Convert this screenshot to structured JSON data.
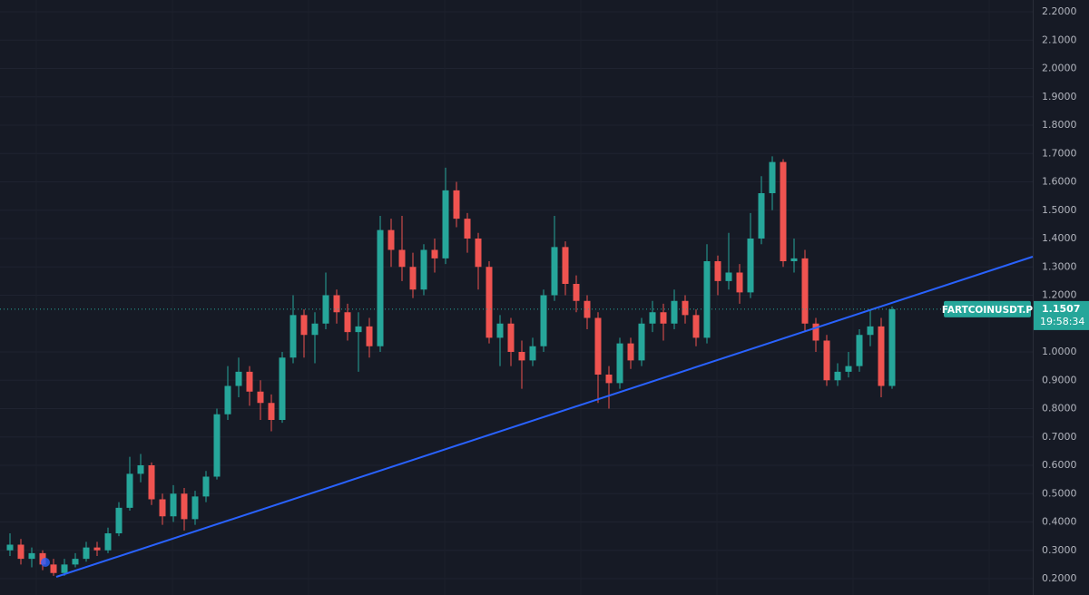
{
  "chart_data": {
    "type": "candlestick",
    "symbol": "FARTCOINUSDT.P",
    "last_price_label": "1.1507",
    "countdown": "19:58:34",
    "up_color": "#26a69a",
    "down_color": "#ef5350",
    "ylim": [
      0.1424,
      2.2416
    ],
    "yticks": [
      {
        "value": 0.2,
        "label": "0.2000"
      },
      {
        "value": 0.3,
        "label": "0.3000"
      },
      {
        "value": 0.4,
        "label": "0.4000"
      },
      {
        "value": 0.5,
        "label": "0.5000"
      },
      {
        "value": 0.6,
        "label": "0.6000"
      },
      {
        "value": 0.7,
        "label": "0.7000"
      },
      {
        "value": 0.8,
        "label": "0.8000"
      },
      {
        "value": 0.9,
        "label": "0.9000"
      },
      {
        "value": 1.0,
        "label": "1.0000"
      },
      {
        "value": 1.2,
        "label": "1.2000"
      },
      {
        "value": 1.3,
        "label": "1.3000"
      },
      {
        "value": 1.4,
        "label": "1.4000"
      },
      {
        "value": 1.5,
        "label": "1.5000"
      },
      {
        "value": 1.6,
        "label": "1.6000"
      },
      {
        "value": 1.7,
        "label": "1.7000"
      },
      {
        "value": 1.8,
        "label": "1.8000"
      },
      {
        "value": 1.9,
        "label": "1.9000"
      },
      {
        "value": 2.0,
        "label": "2.0000"
      },
      {
        "value": 2.1,
        "label": "2.1000"
      },
      {
        "value": 2.2,
        "label": "2.2000"
      }
    ],
    "grid": true,
    "open": [
      0.3,
      0.32,
      0.27,
      0.29,
      0.25,
      0.22,
      0.25,
      0.27,
      0.31,
      0.3,
      0.36,
      0.45,
      0.57,
      0.6,
      0.48,
      0.42,
      0.5,
      0.41,
      0.49,
      0.56,
      0.78,
      0.88,
      0.93,
      0.86,
      0.82,
      0.76,
      0.98,
      1.13,
      1.06,
      1.1,
      1.2,
      1.14,
      1.07,
      1.09,
      1.02,
      1.43,
      1.36,
      1.3,
      1.22,
      1.36,
      1.33,
      1.57,
      1.47,
      1.4,
      1.3,
      1.05,
      1.1,
      1.0,
      0.97,
      1.02,
      1.2,
      1.37,
      1.24,
      1.18,
      1.12,
      0.92,
      0.89,
      1.03,
      0.97,
      1.1,
      1.14,
      1.1,
      1.18,
      1.13,
      1.05,
      1.32,
      1.25,
      1.28,
      1.21,
      1.4,
      1.56,
      1.67,
      1.32,
      1.33,
      1.1,
      1.04,
      0.9,
      0.93,
      0.95,
      1.06,
      1.09,
      0.88
    ],
    "high": [
      0.36,
      0.34,
      0.31,
      0.3,
      0.27,
      0.27,
      0.29,
      0.33,
      0.33,
      0.38,
      0.47,
      0.63,
      0.64,
      0.61,
      0.5,
      0.53,
      0.52,
      0.51,
      0.58,
      0.8,
      0.95,
      0.98,
      0.95,
      0.9,
      0.85,
      1.0,
      1.2,
      1.15,
      1.14,
      1.28,
      1.22,
      1.17,
      1.14,
      1.12,
      1.48,
      1.47,
      1.48,
      1.35,
      1.38,
      1.4,
      1.65,
      1.6,
      1.49,
      1.42,
      1.32,
      1.13,
      1.12,
      1.04,
      1.05,
      1.22,
      1.48,
      1.39,
      1.27,
      1.2,
      1.14,
      0.95,
      1.05,
      1.05,
      1.12,
      1.18,
      1.17,
      1.22,
      1.2,
      1.15,
      1.38,
      1.34,
      1.42,
      1.31,
      1.49,
      1.62,
      1.69,
      1.68,
      1.4,
      1.36,
      1.12,
      1.06,
      0.96,
      1.0,
      1.08,
      1.15,
      1.12,
      1.16
    ],
    "low": [
      0.28,
      0.25,
      0.24,
      0.23,
      0.21,
      0.21,
      0.24,
      0.26,
      0.28,
      0.29,
      0.35,
      0.44,
      0.54,
      0.46,
      0.39,
      0.4,
      0.37,
      0.39,
      0.47,
      0.55,
      0.76,
      0.84,
      0.81,
      0.76,
      0.72,
      0.75,
      0.96,
      0.98,
      0.96,
      1.08,
      1.1,
      1.04,
      0.93,
      0.98,
      1.0,
      1.3,
      1.25,
      1.19,
      1.2,
      1.28,
      1.31,
      1.44,
      1.35,
      1.22,
      1.03,
      0.95,
      0.95,
      0.87,
      0.95,
      1.0,
      1.18,
      1.2,
      1.14,
      1.08,
      0.82,
      0.8,
      0.87,
      0.94,
      0.95,
      1.07,
      1.04,
      1.08,
      1.1,
      1.02,
      1.03,
      1.2,
      1.22,
      1.17,
      1.19,
      1.38,
      1.5,
      1.3,
      1.28,
      1.07,
      1.0,
      0.88,
      0.88,
      0.91,
      0.93,
      1.02,
      0.84,
      0.87
    ],
    "close": [
      0.32,
      0.27,
      0.29,
      0.25,
      0.22,
      0.25,
      0.27,
      0.31,
      0.3,
      0.36,
      0.45,
      0.57,
      0.6,
      0.48,
      0.42,
      0.5,
      0.41,
      0.49,
      0.56,
      0.78,
      0.88,
      0.93,
      0.86,
      0.82,
      0.76,
      0.98,
      1.13,
      1.06,
      1.1,
      1.2,
      1.14,
      1.07,
      1.09,
      1.02,
      1.43,
      1.36,
      1.3,
      1.22,
      1.36,
      1.33,
      1.57,
      1.47,
      1.4,
      1.3,
      1.05,
      1.1,
      1.0,
      0.97,
      1.02,
      1.2,
      1.37,
      1.24,
      1.18,
      1.12,
      0.92,
      0.89,
      1.03,
      0.97,
      1.1,
      1.14,
      1.1,
      1.18,
      1.13,
      1.05,
      1.32,
      1.25,
      1.28,
      1.21,
      1.4,
      1.56,
      1.67,
      1.32,
      1.33,
      1.1,
      1.04,
      0.9,
      0.93,
      0.95,
      1.06,
      1.09,
      0.88,
      1.1507
    ],
    "trendline": {
      "x": [
        4.25,
        94.08
      ],
      "y": [
        0.2064,
        1.336
      ],
      "color": "#2962ff"
    }
  }
}
